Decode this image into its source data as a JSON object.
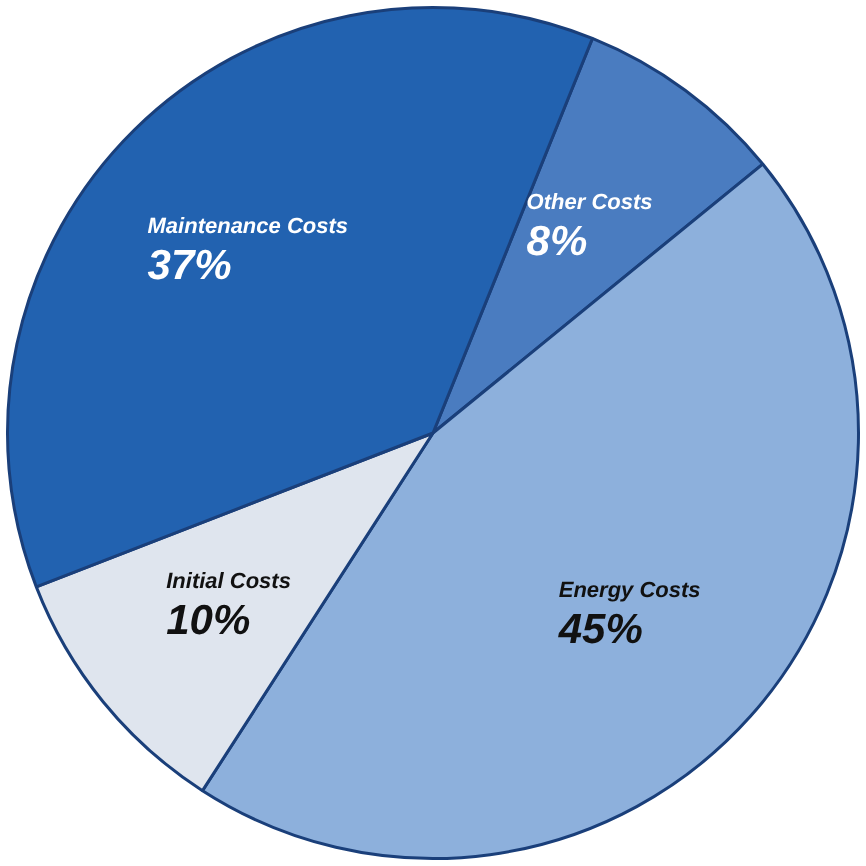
{
  "chart_data": {
    "type": "pie",
    "categories": [
      "Other Costs",
      "Energy Costs",
      "Initial Costs",
      "Maintenance Costs"
    ],
    "values": [
      8,
      45,
      10,
      37
    ],
    "colors": [
      "#4a7cc0",
      "#8db0dc",
      "#dfe5ee",
      "#2262b0"
    ],
    "value_labels": [
      "8%",
      "45%",
      "10%",
      "37%"
    ],
    "legend": false
  }
}
